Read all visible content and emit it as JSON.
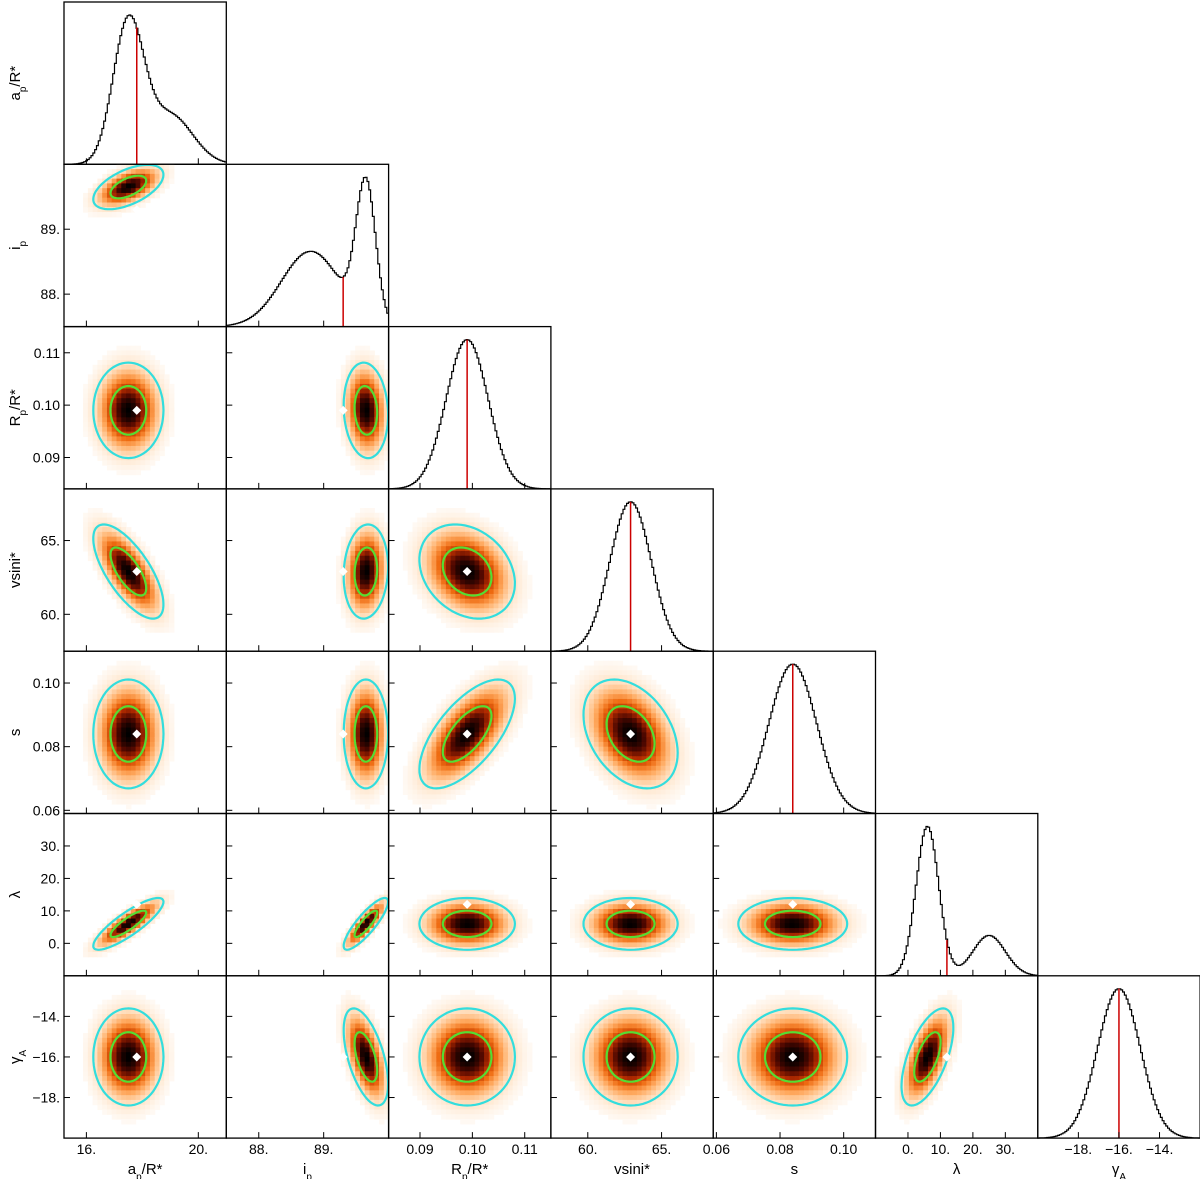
{
  "chart_data": {
    "type": "corner",
    "parameters": [
      {
        "key": "a",
        "label": "a_p/R*",
        "label_main": "a",
        "label_sub": "p",
        "label_tail": "/R*",
        "range": [
          15.2,
          21.0
        ],
        "ticks": [
          16,
          20
        ],
        "tick_labels": [
          "16.",
          "20."
        ],
        "median": 17.8,
        "posterior": {
          "type": "skewed_bimodal",
          "components": [
            [
              17.5,
              0.55,
              1.0
            ],
            [
              19.0,
              0.8,
              0.35
            ]
          ]
        }
      },
      {
        "key": "i",
        "label": "i_p",
        "label_main": "i",
        "label_sub": "p",
        "label_tail": "",
        "range": [
          87.5,
          90.0
        ],
        "ticks": [
          88,
          89
        ],
        "tick_labels": [
          "88.",
          "89."
        ],
        "median": 89.3,
        "posterior": {
          "type": "skewed_bimodal",
          "components": [
            [
              89.65,
              0.15,
              1.0
            ],
            [
              88.8,
              0.45,
              0.55
            ]
          ]
        }
      },
      {
        "key": "rp",
        "label": "R_p/R*",
        "label_main": "R",
        "label_sub": "p",
        "label_tail": "/R*",
        "range": [
          0.084,
          0.115
        ],
        "ticks": [
          0.09,
          0.1,
          0.11
        ],
        "tick_labels": [
          "0.09",
          "0.10",
          "0.11"
        ],
        "median": 0.099,
        "posterior": {
          "type": "gaussian",
          "components": [
            [
              0.099,
              0.004,
              1.0
            ]
          ]
        }
      },
      {
        "key": "vsini",
        "label": "vsini*",
        "label_main": "vsini*",
        "label_sub": "",
        "label_tail": "",
        "range": [
          57.5,
          68.5
        ],
        "ticks": [
          60,
          65
        ],
        "tick_labels": [
          "60.",
          "65."
        ],
        "median": 62.9,
        "posterior": {
          "type": "gaussian",
          "components": [
            [
              62.9,
              1.4,
              1.0
            ]
          ]
        }
      },
      {
        "key": "s",
        "label": "s",
        "label_main": "s",
        "label_sub": "",
        "label_tail": "",
        "range": [
          0.059,
          0.11
        ],
        "ticks": [
          0.06,
          0.08,
          0.1
        ],
        "tick_labels": [
          "0.06",
          "0.08",
          "0.10"
        ],
        "median": 0.084,
        "posterior": {
          "type": "gaussian",
          "components": [
            [
              0.084,
              0.0075,
              1.0
            ]
          ]
        }
      },
      {
        "key": "lambda",
        "label": "λ",
        "label_main": "λ",
        "label_sub": "",
        "label_tail": "",
        "range": [
          -10.0,
          40.0
        ],
        "ticks": [
          0,
          10,
          20,
          30
        ],
        "tick_labels": [
          "0.",
          "10.",
          "20.",
          "30."
        ],
        "median": 12.0,
        "posterior": {
          "type": "skewed_bimodal",
          "components": [
            [
              6.0,
              3.5,
              1.0
            ],
            [
              25.0,
              5.0,
              0.27
            ]
          ]
        }
      },
      {
        "key": "gamma",
        "label": "γ_A",
        "label_main": "γ",
        "label_sub": "A",
        "label_tail": "",
        "range": [
          -20.0,
          -12.0
        ],
        "ticks": [
          -18,
          -16,
          -14
        ],
        "tick_labels": [
          "−18.",
          "−16.",
          "−14."
        ],
        "median": -16.0,
        "posterior": {
          "type": "gaussian",
          "components": [
            [
              -16.0,
              1.05,
              1.0
            ]
          ]
        }
      }
    ],
    "row_tick_labels": {
      "i": [
        "89.",
        "88."
      ],
      "rp": [
        "0.11",
        "0.10",
        "0.09"
      ],
      "vsini": [
        "65.",
        "60."
      ],
      "s": [
        "0.10",
        "0.08",
        "0.06"
      ],
      "lambda": [
        "30.",
        "20.",
        "10.",
        "0."
      ],
      "gamma": [
        "−14.",
        "−16.",
        "−18."
      ]
    },
    "correlations": {
      "i|a": 0.55,
      "rp|a": 0.0,
      "rp|i": -0.1,
      "rp|vsini": 0.0,
      "vsini|a": -0.7,
      "vsini|i": 0.1,
      "vsini|rp": -0.25,
      "s|a": 0.0,
      "s|i": 0.0,
      "s|rp": 0.65,
      "s|vsini": -0.35,
      "lambda|a": 0.85,
      "lambda|i": 0.85,
      "lambda|rp": 0.0,
      "lambda|vsini": 0.0,
      "lambda|s": 0.0,
      "gamma|a": 0.0,
      "gamma|i": -0.55,
      "gamma|rp": 0.0,
      "gamma|vsini": 0.0,
      "gamma|s": 0.0,
      "gamma|lambda": 0.6
    },
    "contour_colors": {
      "inner": "#55dd33",
      "outer": "#33dddd"
    },
    "colormap": [
      "#ffffff",
      "#ffe0c0",
      "#ffaa60",
      "#ee6a10",
      "#b02a00",
      "#500800",
      "#000000"
    ],
    "median_marker_color": "#ffffff",
    "median_line_color": "#cc0000",
    "histogram_color": "#000000",
    "grid": false
  }
}
